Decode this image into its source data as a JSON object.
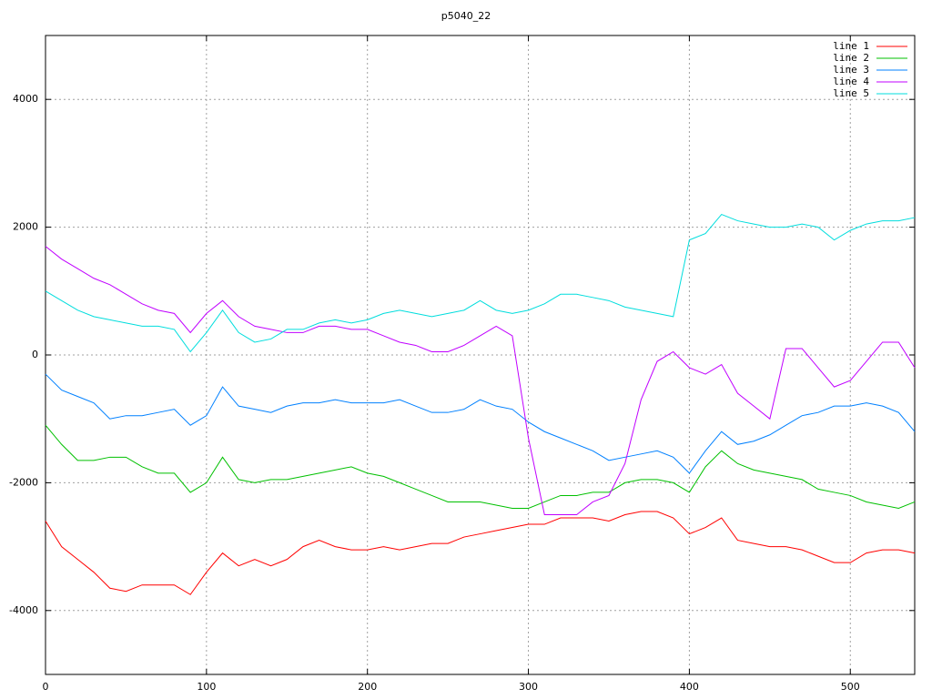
{
  "chart_data": {
    "type": "line",
    "title": "p5040_22",
    "x": [
      0,
      10,
      20,
      30,
      40,
      50,
      60,
      70,
      80,
      90,
      100,
      110,
      120,
      130,
      140,
      150,
      160,
      170,
      180,
      190,
      200,
      210,
      220,
      230,
      240,
      250,
      260,
      270,
      280,
      290,
      300,
      310,
      320,
      330,
      340,
      350,
      360,
      370,
      380,
      390,
      400,
      410,
      420,
      430,
      440,
      450,
      460,
      470,
      480,
      490,
      500,
      510,
      520,
      530,
      540
    ],
    "xlim": [
      0,
      540
    ],
    "xticks": [
      0,
      100,
      200,
      300,
      400,
      500
    ],
    "ylim": [
      -5000,
      5000
    ],
    "yticks": [
      -4000,
      -2000,
      0,
      2000,
      4000
    ],
    "grid": true,
    "legend": "top-right",
    "series": [
      {
        "name": "line 1",
        "color": "#ff0000",
        "values": [
          -2600,
          -3000,
          -3200,
          -3400,
          -3650,
          -3700,
          -3600,
          -3600,
          -3600,
          -3750,
          -3400,
          -3100,
          -3300,
          -3200,
          -3300,
          -3200,
          -3000,
          -2900,
          -3000,
          -3050,
          -3050,
          -3000,
          -3050,
          -3000,
          -2950,
          -2950,
          -2850,
          -2800,
          -2750,
          -2700,
          -2650,
          -2650,
          -2550,
          -2550,
          -2550,
          -2600,
          -2500,
          -2450,
          -2450,
          -2550,
          -2800,
          -2700,
          -2550,
          -2900,
          -2950,
          -3000,
          -3000,
          -3050,
          -3150,
          -3250,
          -3250,
          -3100,
          -3050,
          -3050,
          -3100
        ]
      },
      {
        "name": "line 2",
        "color": "#00c000",
        "values": [
          -1100,
          -1400,
          -1650,
          -1650,
          -1600,
          -1600,
          -1750,
          -1850,
          -1850,
          -2150,
          -2000,
          -1600,
          -1950,
          -2000,
          -1950,
          -1950,
          -1900,
          -1850,
          -1800,
          -1750,
          -1850,
          -1900,
          -2000,
          -2100,
          -2200,
          -2300,
          -2300,
          -2300,
          -2350,
          -2400,
          -2400,
          -2300,
          -2200,
          -2200,
          -2150,
          -2150,
          -2000,
          -1950,
          -1950,
          -2000,
          -2150,
          -1750,
          -1500,
          -1700,
          -1800,
          -1850,
          -1900,
          -1950,
          -2100,
          -2150,
          -2200,
          -2300,
          -2350,
          -2400,
          -2300
        ]
      },
      {
        "name": "line 3",
        "color": "#0080ff",
        "values": [
          -300,
          -550,
          -650,
          -750,
          -1000,
          -950,
          -950,
          -900,
          -850,
          -1100,
          -950,
          -500,
          -800,
          -850,
          -900,
          -800,
          -750,
          -750,
          -700,
          -750,
          -750,
          -750,
          -700,
          -800,
          -900,
          -900,
          -850,
          -700,
          -800,
          -850,
          -1050,
          -1200,
          -1300,
          -1400,
          -1500,
          -1650,
          -1600,
          -1550,
          -1500,
          -1600,
          -1850,
          -1500,
          -1200,
          -1400,
          -1350,
          -1250,
          -1100,
          -950,
          -900,
          -800,
          -800,
          -750,
          -800,
          -900,
          -1200
        ]
      },
      {
        "name": "line 4",
        "color": "#c000ff",
        "values": [
          1700,
          1500,
          1350,
          1200,
          1100,
          950,
          800,
          700,
          650,
          350,
          650,
          850,
          600,
          450,
          400,
          350,
          350,
          450,
          450,
          400,
          400,
          300,
          200,
          150,
          50,
          50,
          150,
          300,
          450,
          300,
          -1300,
          -2500,
          -2500,
          -2500,
          -2300,
          -2200,
          -1700,
          -700,
          -100,
          50,
          -200,
          -300,
          -150,
          -600,
          -800,
          -1000,
          100,
          100,
          -200,
          -500,
          -400,
          -100,
          200,
          200,
          -200
        ]
      },
      {
        "name": "line 5",
        "color": "#00dddd",
        "values": [
          1000,
          850,
          700,
          600,
          550,
          500,
          450,
          450,
          400,
          50,
          350,
          700,
          350,
          200,
          250,
          400,
          400,
          500,
          550,
          500,
          550,
          650,
          700,
          650,
          600,
          650,
          700,
          850,
          700,
          650,
          700,
          800,
          950,
          950,
          900,
          850,
          750,
          700,
          650,
          600,
          1800,
          1900,
          2200,
          2100,
          2050,
          2000,
          2000,
          2050,
          2000,
          1800,
          1950,
          2050,
          2100,
          2100,
          2150
        ]
      }
    ]
  }
}
